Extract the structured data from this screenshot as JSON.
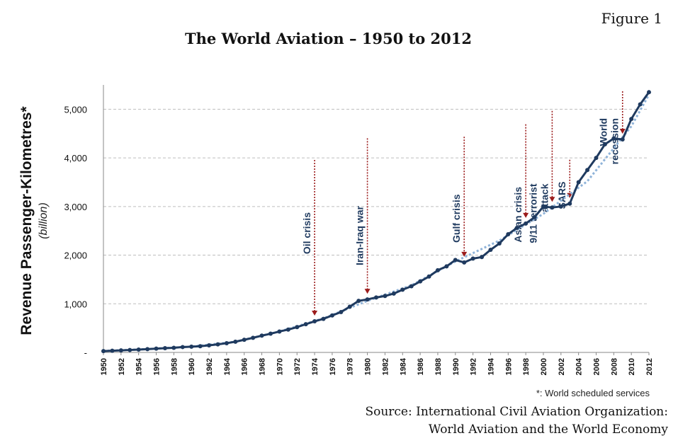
{
  "figure_label": "Figure 1",
  "note": "*: World scheduled services",
  "source_line1": "Source: International Civil Aviation Organization:",
  "source_line2": "World Aviation and the World Economy",
  "colors": {
    "line": "#1f3a5f",
    "trend": "#8fb3d9",
    "event": "#9b1b1b",
    "grid": "#bdbdbd"
  },
  "chart_data": {
    "type": "line",
    "title": "The World Aviation – 1950 to 2012",
    "ylabel": "Revenue Passenger-Kilometres*",
    "yunit": "(billion)",
    "ylim": [
      0,
      5500
    ],
    "yticks": [
      0,
      1000,
      2000,
      3000,
      4000,
      5000
    ],
    "ytick_labels": [
      "-",
      "1,000",
      "2,000",
      "3,000",
      "4,000",
      "5,000"
    ],
    "xlim": [
      1950,
      2012
    ],
    "xticks": [
      "1950",
      "1952",
      "1954",
      "1956",
      "1958",
      "1960",
      "1962",
      "1964",
      "1966",
      "1968",
      "1970",
      "1972",
      "1974",
      "1976",
      "1978",
      "1980",
      "1982",
      "1984",
      "1986",
      "1988",
      "1990",
      "1992",
      "1994",
      "1996",
      "1998",
      "2000",
      "2002",
      "2004",
      "2006",
      "2008",
      "2010",
      "2012"
    ],
    "grid": true,
    "series": [
      {
        "x": [
          1950,
          1951,
          1952,
          1953,
          1954,
          1955,
          1956,
          1957,
          1958,
          1959,
          1960,
          1961,
          1962,
          1963,
          1964,
          1965,
          1966,
          1967,
          1968,
          1969,
          1970,
          1971,
          1972,
          1973,
          1974,
          1975,
          1976,
          1977,
          1978,
          1979,
          1980,
          1981,
          1982,
          1983,
          1984,
          1985,
          1986,
          1987,
          1988,
          1989,
          1990,
          1991,
          1992,
          1993,
          1994,
          1995,
          1996,
          1997,
          1998,
          1999,
          2000,
          2001,
          2002,
          2003,
          2004,
          2005,
          2006,
          2007,
          2008,
          2009,
          2010,
          2011,
          2012
        ],
        "values": [
          28,
          35,
          42,
          50,
          58,
          68,
          78,
          88,
          95,
          110,
          118,
          128,
          145,
          165,
          190,
          220,
          260,
          300,
          345,
          385,
          430,
          470,
          520,
          580,
          640,
          690,
          760,
          830,
          940,
          1060,
          1090,
          1130,
          1160,
          1210,
          1290,
          1360,
          1460,
          1560,
          1690,
          1770,
          1900,
          1850,
          1930,
          1960,
          2110,
          2240,
          2430,
          2560,
          2650,
          2780,
          3000,
          2980,
          3000,
          3060,
          3500,
          3750,
          4000,
          4280,
          4400,
          4380,
          4800,
          5100,
          5350
        ]
      },
      {
        "type": "trend",
        "x": [
          1950,
          1955,
          1960,
          1965,
          1970,
          1975,
          1980,
          1985,
          1990,
          1995,
          2000,
          2005,
          2010,
          2012
        ],
        "values": [
          30,
          70,
          120,
          220,
          430,
          700,
          1060,
          1380,
          1870,
          2300,
          2850,
          3520,
          4650,
          5300
        ]
      }
    ],
    "annotations": [
      {
        "label": "Oil crisis",
        "year": 1974,
        "value": 640
      },
      {
        "label": "Iran-Iraq war",
        "year": 1980,
        "value": 1090
      },
      {
        "label": "Gulf crisis",
        "year": 1991,
        "value": 1850
      },
      {
        "label": "Asian crisis",
        "year": 1998,
        "value": 2650
      },
      {
        "label": "9/11 terrorist",
        "label2": "attack",
        "year": 2001,
        "value": 2980
      },
      {
        "label": "SARS",
        "year": 2003,
        "value": 3060
      },
      {
        "label": "World",
        "label2": "recession",
        "year": 2009,
        "value": 4380
      }
    ]
  }
}
